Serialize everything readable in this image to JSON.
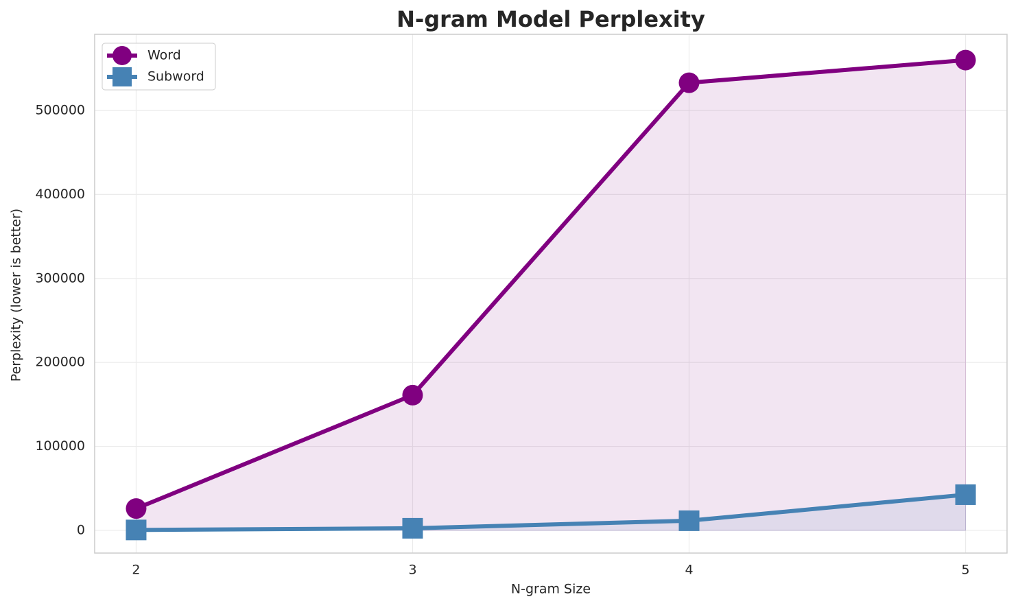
{
  "chart_data": {
    "type": "line",
    "title": "N-gram Model Perplexity",
    "x_label": "N-gram Size",
    "y_label": "Perplexity (lower is better)",
    "x": [
      2,
      3,
      4,
      5
    ],
    "series": [
      {
        "name": "Word",
        "color": "#800080",
        "marker": "circle",
        "fill": true,
        "values": [
          26000,
          161000,
          533000,
          560000
        ]
      },
      {
        "name": "Subword",
        "color": "#4682b4",
        "marker": "square",
        "fill": true,
        "values": [
          500,
          2500,
          11500,
          42500
        ]
      }
    ],
    "xlim": [
      1.85,
      5.15
    ],
    "ylim": [
      -27000,
      590700
    ],
    "xticks": [
      2,
      3,
      4,
      5
    ],
    "yticks": [
      0,
      100000,
      200000,
      300000,
      400000,
      500000
    ],
    "grid": true,
    "legend": "upper left"
  }
}
